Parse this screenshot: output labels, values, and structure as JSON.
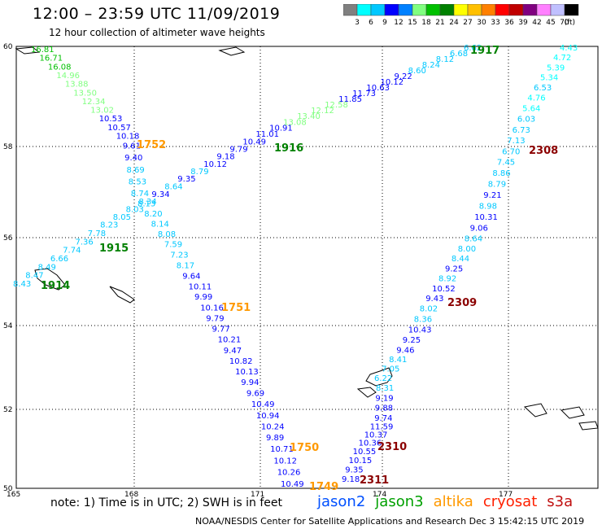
{
  "header": {
    "title": "12:00 – 23:59 UTC 11/09/2019",
    "subtitle": "12 hour collection of altimeter wave heights"
  },
  "legend": {
    "unit": "(ft)",
    "colors": [
      "#808080",
      "#00ffff",
      "#00c8ff",
      "#0000ff",
      "#0080ff",
      "#80ff80",
      "#00c000",
      "#008000",
      "#ffff00",
      "#ffc000",
      "#ff8000",
      "#ff0000",
      "#c00000",
      "#800080",
      "#ff80ff",
      "#c0c0ff",
      "#000000"
    ],
    "ticks": [
      "3",
      "6",
      "9",
      "12",
      "15",
      "18",
      "21",
      "24",
      "27",
      "30",
      "33",
      "36",
      "39",
      "42",
      "45",
      "70"
    ]
  },
  "axes": {
    "lon_labels": [
      "165",
      "168",
      "171",
      "174",
      "177"
    ],
    "lat_labels": [
      "60",
      "58",
      "56",
      "54",
      "52",
      "50"
    ]
  },
  "footer": {
    "note": "note: 1) Time is in UTC; 2) SWH is in feet",
    "credit": "NOAA/NESDIS Center for Satellite Applications and Research    Dec  3 15:42:15 UTC 2019",
    "satellites": [
      {
        "name": "jason2",
        "color": "#0050ff"
      },
      {
        "name": "jason3",
        "color": "#00a000"
      },
      {
        "name": "altika",
        "color": "#ff9900"
      },
      {
        "name": "cryosat",
        "color": "#ff2000"
      },
      {
        "name": "s3a",
        "color": "#c01010"
      }
    ]
  },
  "times": [
    {
      "text": "1917",
      "color": "#008000"
    },
    {
      "text": "1916",
      "color": "#008000"
    },
    {
      "text": "1915",
      "color": "#008000"
    },
    {
      "text": "1914",
      "color": "#008000"
    },
    {
      "text": "1752",
      "color": "#ff9900"
    },
    {
      "text": "1751",
      "color": "#ff9900"
    },
    {
      "text": "1750",
      "color": "#ff9900"
    },
    {
      "text": "1749",
      "color": "#ff9900"
    },
    {
      "text": "2308",
      "color": "#8b0000"
    },
    {
      "text": "2309",
      "color": "#8b0000"
    },
    {
      "text": "2310",
      "color": "#8b0000"
    },
    {
      "text": "2311",
      "color": "#8b0000"
    }
  ],
  "tracks": [
    {
      "name": "altika-track",
      "values": [
        {
          "v": "16.81",
          "c": "#00c000"
        },
        {
          "v": "16.71",
          "c": "#00c000"
        },
        {
          "v": "16.08",
          "c": "#00c000"
        },
        {
          "v": "14.96",
          "c": "#80ff80"
        },
        {
          "v": "13.88",
          "c": "#80ff80"
        },
        {
          "v": "13.50",
          "c": "#80ff80"
        },
        {
          "v": "12.34",
          "c": "#80ff80"
        },
        {
          "v": "13.02",
          "c": "#80ff80"
        },
        {
          "v": "10.53",
          "c": "#0000ff"
        },
        {
          "v": "10.57",
          "c": "#0000ff"
        },
        {
          "v": "10.18",
          "c": "#0000ff"
        },
        {
          "v": "9.61",
          "c": "#0000ff"
        },
        {
          "v": "9.40",
          "c": "#0000ff"
        },
        {
          "v": "8.69",
          "c": "#00c8ff"
        },
        {
          "v": "8.53",
          "c": "#00c8ff"
        },
        {
          "v": "8.74",
          "c": "#00c8ff"
        },
        {
          "v": "8.13",
          "c": "#00c8ff"
        },
        {
          "v": "8.20",
          "c": "#00c8ff"
        },
        {
          "v": "8.14",
          "c": "#00c8ff"
        },
        {
          "v": "8.08",
          "c": "#00c8ff"
        },
        {
          "v": "7.59",
          "c": "#00c8ff"
        },
        {
          "v": "7.23",
          "c": "#00c8ff"
        },
        {
          "v": "8.17",
          "c": "#00c8ff"
        },
        {
          "v": "9.64",
          "c": "#0000ff"
        },
        {
          "v": "10.11",
          "c": "#0000ff"
        },
        {
          "v": "9.99",
          "c": "#0000ff"
        },
        {
          "v": "10.16",
          "c": "#0000ff"
        },
        {
          "v": "9.79",
          "c": "#0000ff"
        },
        {
          "v": "9.77",
          "c": "#0000ff"
        },
        {
          "v": "10.21",
          "c": "#0000ff"
        },
        {
          "v": "9.47",
          "c": "#0000ff"
        },
        {
          "v": "10.82",
          "c": "#0000ff"
        },
        {
          "v": "10.13",
          "c": "#0000ff"
        },
        {
          "v": "9.94",
          "c": "#0000ff"
        },
        {
          "v": "9.69",
          "c": "#0000ff"
        },
        {
          "v": "10.49",
          "c": "#0000ff"
        },
        {
          "v": "10.94",
          "c": "#0000ff"
        },
        {
          "v": "10.24",
          "c": "#0000ff"
        },
        {
          "v": "9.89",
          "c": "#0000ff"
        },
        {
          "v": "10.71",
          "c": "#0000ff"
        },
        {
          "v": "10.12",
          "c": "#0000ff"
        },
        {
          "v": "10.26",
          "c": "#0000ff"
        },
        {
          "v": "10.49",
          "c": "#0000ff"
        }
      ]
    },
    {
      "name": "jason3-track",
      "values": [
        {
          "v": "8.43",
          "c": "#00c8ff"
        },
        {
          "v": "8.47",
          "c": "#00c8ff"
        },
        {
          "v": "8.49",
          "c": "#00c8ff"
        },
        {
          "v": "6.66",
          "c": "#00c8ff"
        },
        {
          "v": "7.74",
          "c": "#00c8ff"
        },
        {
          "v": "7.36",
          "c": "#00c8ff"
        },
        {
          "v": "7.78",
          "c": "#00c8ff"
        },
        {
          "v": "8.23",
          "c": "#00c8ff"
        },
        {
          "v": "8.05",
          "c": "#00c8ff"
        },
        {
          "v": "8.03",
          "c": "#00c8ff"
        },
        {
          "v": "8.34",
          "c": "#00c8ff"
        },
        {
          "v": "9.34",
          "c": "#0000ff"
        },
        {
          "v": "8.64",
          "c": "#00c8ff"
        },
        {
          "v": "9.35",
          "c": "#0000ff"
        },
        {
          "v": "8.79",
          "c": "#00c8ff"
        },
        {
          "v": "10.12",
          "c": "#0000ff"
        },
        {
          "v": "9.18",
          "c": "#0000ff"
        },
        {
          "v": "9.79",
          "c": "#0000ff"
        },
        {
          "v": "10.49",
          "c": "#0000ff"
        },
        {
          "v": "11.01",
          "c": "#0000ff"
        },
        {
          "v": "10.91",
          "c": "#0000ff"
        },
        {
          "v": "13.08",
          "c": "#80ff80"
        },
        {
          "v": "13.40",
          "c": "#80ff80"
        },
        {
          "v": "12.12",
          "c": "#80ff80"
        },
        {
          "v": "12.58",
          "c": "#80ff80"
        },
        {
          "v": "11.85",
          "c": "#0000ff"
        },
        {
          "v": "11.73",
          "c": "#0000ff"
        },
        {
          "v": "10.63",
          "c": "#0000ff"
        },
        {
          "v": "10.12",
          "c": "#0000ff"
        },
        {
          "v": "9.22",
          "c": "#0000ff"
        },
        {
          "v": "8.60",
          "c": "#00c8ff"
        },
        {
          "v": "8.24",
          "c": "#00c8ff"
        },
        {
          "v": "8.12",
          "c": "#00c8ff"
        },
        {
          "v": "6.68",
          "c": "#00c8ff"
        },
        {
          "v": "6.62",
          "c": "#00c8ff"
        }
      ]
    },
    {
      "name": "s3a-track-east",
      "values": [
        {
          "v": "4.43",
          "c": "#00ffff"
        },
        {
          "v": "4.72",
          "c": "#00ffff"
        },
        {
          "v": "5.39",
          "c": "#00ffff"
        },
        {
          "v": "5.34",
          "c": "#00ffff"
        },
        {
          "v": "6.53",
          "c": "#00c8ff"
        },
        {
          "v": "4.76",
          "c": "#00ffff"
        },
        {
          "v": "5.64",
          "c": "#00ffff"
        },
        {
          "v": "6.03",
          "c": "#00c8ff"
        },
        {
          "v": "6.73",
          "c": "#00c8ff"
        },
        {
          "v": "7.13",
          "c": "#00c8ff"
        },
        {
          "v": "6.70",
          "c": "#00c8ff"
        },
        {
          "v": "7.45",
          "c": "#00c8ff"
        },
        {
          "v": "8.86",
          "c": "#00c8ff"
        },
        {
          "v": "8.79",
          "c": "#00c8ff"
        },
        {
          "v": "9.21",
          "c": "#0000ff"
        },
        {
          "v": "8.98",
          "c": "#00c8ff"
        },
        {
          "v": "10.31",
          "c": "#0000ff"
        },
        {
          "v": "9.06",
          "c": "#0000ff"
        },
        {
          "v": "8.64",
          "c": "#00c8ff"
        },
        {
          "v": "8.00",
          "c": "#00c8ff"
        },
        {
          "v": "8.44",
          "c": "#00c8ff"
        },
        {
          "v": "9.25",
          "c": "#0000ff"
        },
        {
          "v": "8.92",
          "c": "#00c8ff"
        },
        {
          "v": "10.52",
          "c": "#0000ff"
        },
        {
          "v": "9.43",
          "c": "#0000ff"
        },
        {
          "v": "8.02",
          "c": "#00c8ff"
        },
        {
          "v": "8.36",
          "c": "#00c8ff"
        },
        {
          "v": "10.43",
          "c": "#0000ff"
        },
        {
          "v": "9.25",
          "c": "#0000ff"
        },
        {
          "v": "9.46",
          "c": "#0000ff"
        },
        {
          "v": "8.41",
          "c": "#00c8ff"
        },
        {
          "v": "7.05",
          "c": "#00c8ff"
        },
        {
          "v": "6.22",
          "c": "#00c8ff"
        }
      ]
    },
    {
      "name": "s3a-track-south",
      "values": [
        {
          "v": "8.31",
          "c": "#00c8ff"
        },
        {
          "v": "9.19",
          "c": "#0000ff"
        },
        {
          "v": "9.88",
          "c": "#0000ff"
        },
        {
          "v": "9.74",
          "c": "#0000ff"
        },
        {
          "v": "11.59",
          "c": "#0000ff"
        },
        {
          "v": "10.37",
          "c": "#0000ff"
        },
        {
          "v": "10.36",
          "c": "#0000ff"
        },
        {
          "v": "10.55",
          "c": "#0000ff"
        },
        {
          "v": "10.15",
          "c": "#0000ff"
        },
        {
          "v": "9.35",
          "c": "#0000ff"
        },
        {
          "v": "9.18",
          "c": "#0000ff"
        }
      ]
    }
  ]
}
